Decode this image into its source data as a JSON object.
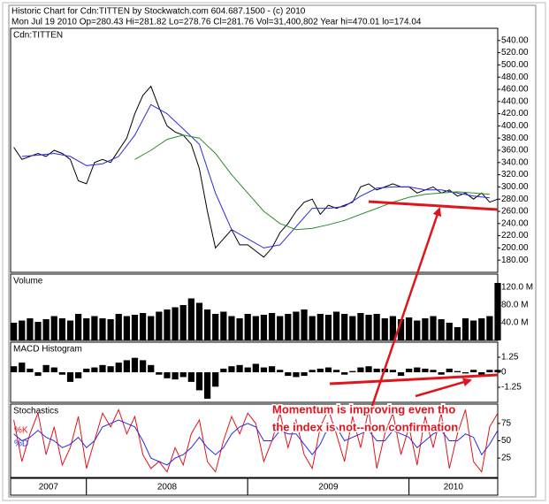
{
  "chart_data": {
    "type": "stock",
    "title": "Historic Chart for Cdn:TITTEN by Stockwatch.com 604.687.1500 - (c) 2010",
    "subtitle": "Mon Jul 19 2010   Op=280.43   Hi=281.82   Lo=278.76   Cl=281.76   Vol=31,400,802   Year hi=470.01   lo=174.04",
    "xlim": [
      2007.53,
      2010.55
    ],
    "x": [
      2007.55,
      2007.6,
      2007.65,
      2007.7,
      2007.75,
      2007.8,
      2007.85,
      2007.9,
      2007.95,
      2008.0,
      2008.05,
      2008.1,
      2008.15,
      2008.2,
      2008.25,
      2008.3,
      2008.35,
      2008.4,
      2008.45,
      2008.5,
      2008.55,
      2008.6,
      2008.65,
      2008.7,
      2008.75,
      2008.8,
      2008.85,
      2008.9,
      2008.95,
      2009.0,
      2009.05,
      2009.1,
      2009.15,
      2009.2,
      2009.25,
      2009.3,
      2009.35,
      2009.4,
      2009.45,
      2009.5,
      2009.55,
      2009.6,
      2009.65,
      2009.7,
      2009.75,
      2009.8,
      2009.85,
      2009.9,
      2009.95,
      2010.0,
      2010.05,
      2010.1,
      2010.15,
      2010.2,
      2010.25,
      2010.3,
      2010.35,
      2010.4,
      2010.45,
      2010.5,
      2010.55
    ],
    "x_bands": [
      {
        "label": "2007",
        "from": 2007.53,
        "to": 2008.0
      },
      {
        "label": "2008",
        "from": 2008.0,
        "to": 2009.0
      },
      {
        "label": "2009",
        "from": 2009.0,
        "to": 2010.0
      },
      {
        "label": "2010",
        "from": 2010.0,
        "to": 2010.55
      }
    ],
    "panels": [
      {
        "type": "line",
        "label": "Cdn:TITTEN",
        "ylim": [
          160,
          560
        ],
        "yticks": [
          {
            "value": 180,
            "label": "180.00"
          },
          {
            "value": 200,
            "label": "200.00"
          },
          {
            "value": 220,
            "label": "220.00"
          },
          {
            "value": 240,
            "label": "240.00"
          },
          {
            "value": 260,
            "label": "260.00"
          },
          {
            "value": 280,
            "label": "280.00"
          },
          {
            "value": 300,
            "label": "300.00"
          },
          {
            "value": 320,
            "label": "320.00"
          },
          {
            "value": 340,
            "label": "340.00"
          },
          {
            "value": 360,
            "label": "360.00"
          },
          {
            "value": 380,
            "label": "380.00"
          },
          {
            "value": 400,
            "label": "400.00"
          },
          {
            "value": 420,
            "label": "420.00"
          },
          {
            "value": 440,
            "label": "440.00"
          },
          {
            "value": 460,
            "label": "460.00"
          },
          {
            "value": 480,
            "label": "480.00"
          },
          {
            "value": 500,
            "label": "500.00"
          },
          {
            "value": 520,
            "label": "520.00"
          },
          {
            "value": 540,
            "label": "540.00"
          }
        ],
        "series": [
          {
            "color": "#000000",
            "values": [
              365,
              345,
              350,
              355,
              350,
              360,
              355,
              345,
              310,
              305,
              340,
              345,
              340,
              360,
              380,
              420,
              450,
              465,
              430,
              400,
              390,
              385,
              370,
              330,
              260,
              200,
              215,
              230,
              205,
              205,
              195,
              185,
              200,
              225,
              240,
              260,
              275,
              280,
              255,
              270,
              265,
              270,
              275,
              300,
              305,
              295,
              300,
              305,
              300,
              300,
              290,
              295,
              300,
              290,
              295,
              285,
              290,
              280,
              290,
              275,
              280
            ]
          },
          {
            "color": "#2a2ae0",
            "x": [
              2007.6,
              2007.7,
              2007.8,
              2007.9,
              2008.0,
              2008.1,
              2008.2,
              2008.3,
              2008.4,
              2008.5,
              2008.6,
              2008.7,
              2008.8,
              2008.9,
              2009.0,
              2009.1,
              2009.2,
              2009.3,
              2009.4,
              2009.5,
              2009.6,
              2009.7,
              2009.8,
              2009.9,
              2010.0,
              2010.1,
              2010.2,
              2010.3,
              2010.4,
              2010.5
            ],
            "values": [
              350,
              352,
              355,
              350,
              335,
              338,
              350,
              385,
              435,
              420,
              395,
              370,
              290,
              230,
              215,
              200,
              205,
              235,
              265,
              265,
              268,
              285,
              298,
              300,
              300,
              295,
              295,
              290,
              285,
              282
            ]
          },
          {
            "color": "#2e8b2e",
            "x": [
              2008.3,
              2008.4,
              2008.5,
              2008.6,
              2008.7,
              2008.8,
              2008.9,
              2009.0,
              2009.1,
              2009.2,
              2009.3,
              2009.4,
              2009.5,
              2009.6,
              2009.7,
              2009.8,
              2009.9,
              2010.0,
              2010.1,
              2010.2,
              2010.3,
              2010.4,
              2010.5
            ],
            "values": [
              345,
              360,
              378,
              385,
              380,
              355,
              320,
              290,
              260,
              240,
              230,
              232,
              238,
              245,
              255,
              265,
              275,
              283,
              288,
              290,
              292,
              290,
              288
            ]
          }
        ]
      },
      {
        "type": "bar",
        "label": "Volume",
        "ylim": [
          0,
          150
        ],
        "yticks": [
          {
            "value": 40,
            "label": "40.0 M"
          },
          {
            "value": 80,
            "label": "80.0 M"
          },
          {
            "value": 120,
            "label": "120.0 M"
          }
        ],
        "series": [
          {
            "color": "#000000",
            "values": [
              40,
              45,
              50,
              42,
              48,
              55,
              50,
              45,
              60,
              50,
              55,
              50,
              48,
              60,
              55,
              58,
              62,
              55,
              65,
              70,
              75,
              80,
              95,
              85,
              70,
              60,
              65,
              55,
              50,
              60,
              55,
              58,
              62,
              55,
              60,
              65,
              70,
              55,
              60,
              58,
              65,
              60,
              55,
              62,
              58,
              60,
              50,
              55,
              48,
              52,
              45,
              50,
              55,
              48,
              40,
              30,
              50,
              45,
              50,
              55,
              130
            ]
          }
        ]
      },
      {
        "type": "bar",
        "label": "MACD Histogram",
        "ylim": [
          -2.5,
          2.5
        ],
        "yticks": [
          -1.25,
          0,
          1.25
        ],
        "series": [
          {
            "color": "#000000",
            "values": [
              0.5,
              0.8,
              0.3,
              -0.3,
              0.6,
              0.4,
              -0.2,
              -0.8,
              -0.5,
              0.3,
              0.4,
              0.6,
              0.5,
              0.8,
              1.0,
              1.2,
              1.0,
              0.6,
              -0.2,
              -0.5,
              -0.6,
              -0.4,
              -0.8,
              -1.5,
              -2.2,
              -1.2,
              0.3,
              0.5,
              0.6,
              0.4,
              0.7,
              0.4,
              0.5,
              0.2,
              -0.3,
              -0.4,
              -0.3,
              0.2,
              0.3,
              0.4,
              0.2,
              -0.2,
              0.1,
              0.4,
              0.5,
              0.3,
              0.3,
              0.2,
              -0.3,
              0.3,
              0.4,
              0.3,
              0.2,
              -0.2,
              0.3,
              0.1,
              -0.1,
              0.2,
              -0.3,
              0.2,
              0.2
            ]
          }
        ]
      },
      {
        "type": "line",
        "label": "Stochastics",
        "ylim": [
          -3,
          103
        ],
        "yticks": [
          25,
          50,
          75
        ],
        "series": [
          {
            "name": "%K",
            "color": "#e0141b",
            "values": [
              80,
              20,
              60,
              90,
              30,
              70,
              15,
              40,
              85,
              10,
              50,
              90,
              70,
              95,
              60,
              85,
              30,
              10,
              20,
              5,
              40,
              15,
              60,
              80,
              20,
              5,
              50,
              85,
              60,
              90,
              75,
              20,
              50,
              90,
              40,
              80,
              30,
              10,
              70,
              95,
              60,
              20,
              85,
              40,
              95,
              10,
              60,
              90,
              30,
              70,
              15,
              85,
              40,
              90,
              10,
              60,
              95,
              20,
              5,
              70,
              90
            ]
          },
          {
            "name": "%D",
            "color": "#2a2ae0",
            "values": [
              60,
              50,
              55,
              65,
              55,
              50,
              40,
              45,
              55,
              40,
              50,
              70,
              75,
              80,
              75,
              70,
              50,
              25,
              20,
              15,
              25,
              30,
              40,
              55,
              40,
              30,
              40,
              60,
              70,
              75,
              70,
              50,
              50,
              65,
              60,
              60,
              45,
              30,
              45,
              70,
              70,
              50,
              55,
              60,
              65,
              50,
              50,
              65,
              60,
              55,
              40,
              50,
              60,
              65,
              50,
              50,
              60,
              55,
              30,
              45,
              65
            ]
          }
        ]
      }
    ]
  },
  "annotation": {
    "lines": [
      "Momentum is improving even tho",
      "the index is not--non confirmation"
    ]
  }
}
